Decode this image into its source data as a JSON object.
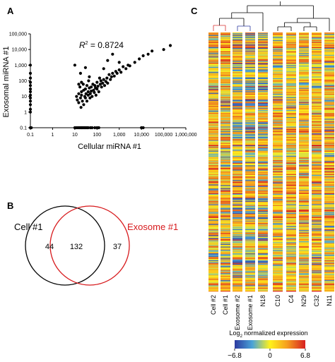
{
  "panels": {
    "a": "A",
    "b": "B",
    "c": "C"
  },
  "chart_data": [
    {
      "type": "scatter",
      "panel": "A",
      "xlabel": "Cellular miRNA #1",
      "ylabel": "Exosomal miRNA #1",
      "annotation": "R² = 0.8724",
      "annotation_parts": [
        "R",
        "2",
        " = 0.8724"
      ],
      "scale": "log",
      "xlim": [
        0.1,
        1000000
      ],
      "ylim": [
        0.1,
        100000
      ],
      "xticks": [
        "0.1",
        "1",
        "10",
        "100",
        "1,000",
        "10,000",
        "100,000",
        "1,000,000"
      ],
      "yticks": [
        "0.1",
        "1",
        "10",
        "100",
        "1,000",
        "10,000",
        "100,000"
      ],
      "grid": false,
      "points": [
        [
          0.1,
          1000
        ],
        [
          0.1,
          300
        ],
        [
          0.1,
          150
        ],
        [
          0.1,
          80
        ],
        [
          0.1,
          50
        ],
        [
          0.1,
          30
        ],
        [
          0.1,
          20
        ],
        [
          0.1,
          12
        ],
        [
          0.1,
          8
        ],
        [
          0.1,
          5
        ],
        [
          0.1,
          3
        ],
        [
          0.1,
          1.5
        ],
        [
          0.1,
          1
        ],
        [
          0.1,
          0.1
        ],
        [
          0.11,
          0.1
        ],
        [
          10,
          0.1
        ],
        [
          12,
          0.1
        ],
        [
          14,
          0.1
        ],
        [
          16,
          0.1
        ],
        [
          18,
          0.1
        ],
        [
          20,
          0.1
        ],
        [
          22,
          0.1
        ],
        [
          25,
          0.1
        ],
        [
          28,
          0.1
        ],
        [
          32,
          0.1
        ],
        [
          36,
          0.1
        ],
        [
          40,
          0.1
        ],
        [
          50,
          0.1
        ],
        [
          60,
          0.1
        ],
        [
          80,
          0.1
        ],
        [
          100,
          0.1
        ],
        [
          120,
          0.1
        ],
        [
          10000,
          0.1
        ],
        [
          12000,
          0.1
        ],
        [
          10,
          1000
        ],
        [
          12,
          10
        ],
        [
          13,
          6
        ],
        [
          15,
          15
        ],
        [
          15,
          4
        ],
        [
          17,
          40
        ],
        [
          18,
          8
        ],
        [
          19,
          2
        ],
        [
          20,
          20
        ],
        [
          20,
          12
        ],
        [
          22,
          5
        ],
        [
          24,
          60
        ],
        [
          25,
          25
        ],
        [
          25,
          3
        ],
        [
          28,
          10
        ],
        [
          30,
          30
        ],
        [
          30,
          8
        ],
        [
          32,
          15
        ],
        [
          35,
          5
        ],
        [
          35,
          50
        ],
        [
          40,
          20
        ],
        [
          40,
          12
        ],
        [
          42,
          100
        ],
        [
          45,
          35
        ],
        [
          48,
          8
        ],
        [
          50,
          15
        ],
        [
          55,
          40
        ],
        [
          55,
          22
        ],
        [
          60,
          10
        ],
        [
          65,
          60
        ],
        [
          70,
          25
        ],
        [
          75,
          18
        ],
        [
          80,
          50
        ],
        [
          85,
          35
        ],
        [
          90,
          12
        ],
        [
          100,
          80
        ],
        [
          100,
          30
        ],
        [
          110,
          45
        ],
        [
          120,
          20
        ],
        [
          130,
          150
        ],
        [
          140,
          60
        ],
        [
          150,
          100
        ],
        [
          160,
          40
        ],
        [
          180,
          70
        ],
        [
          200,
          120
        ],
        [
          220,
          50
        ],
        [
          250,
          90
        ],
        [
          280,
          150
        ],
        [
          300,
          70
        ],
        [
          350,
          250
        ],
        [
          400,
          120
        ],
        [
          450,
          180
        ],
        [
          500,
          300
        ],
        [
          600,
          200
        ],
        [
          700,
          400
        ],
        [
          800,
          300
        ],
        [
          1000,
          500
        ],
        [
          1200,
          350
        ],
        [
          1500,
          800
        ],
        [
          2000,
          600
        ],
        [
          2500,
          1000
        ],
        [
          3000,
          900
        ],
        [
          5000,
          1500
        ],
        [
          8000,
          2500
        ],
        [
          12000,
          4000
        ],
        [
          20000,
          5000
        ],
        [
          30000,
          8000
        ],
        [
          100000,
          10000
        ],
        [
          200000,
          18000
        ],
        [
          500,
          5000
        ],
        [
          300,
          2000
        ],
        [
          18,
          300
        ],
        [
          30,
          700
        ],
        [
          15,
          60
        ],
        [
          20,
          80
        ],
        [
          45,
          180
        ],
        [
          200,
          600
        ],
        [
          1000,
          1500
        ]
      ]
    },
    {
      "type": "venn",
      "panel": "B",
      "sets": [
        {
          "name": "Cell #1",
          "only": "44",
          "color": "#000000"
        },
        {
          "name": "Exosome #1",
          "only": "37",
          "color": "#d7191c"
        }
      ],
      "intersection": "132"
    },
    {
      "type": "heatmap",
      "panel": "C",
      "columns": [
        "Cell #2",
        "Cell #1",
        "Exosome #2",
        "Exosome #1",
        "N18",
        "C10",
        "C4",
        "N29",
        "C32",
        "N11"
      ],
      "rows": 300,
      "colorbar": {
        "title_parts": [
          "Log",
          "2",
          " normalized expression"
        ],
        "min": -6.8,
        "max": 6.8,
        "ticks": [
          "−6.8",
          "0",
          "6.8"
        ],
        "colors": [
          "#2c3aa0",
          "#4aa3d8",
          "#fff21a",
          "#f59b1f",
          "#d72020"
        ]
      }
    }
  ]
}
